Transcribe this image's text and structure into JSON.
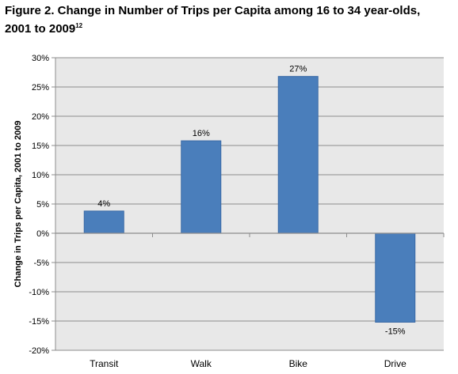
{
  "figure": {
    "title": "Figure 2. Change in Number of Trips per Capita among 16 to 34 year-olds, 2001 to 2009",
    "footnote": "12"
  },
  "chart_data": {
    "type": "bar",
    "categories": [
      "Transit",
      "Walk",
      "Bike",
      "Drive"
    ],
    "values": [
      3.8,
      15.8,
      26.8,
      -15.2
    ],
    "data_labels": [
      "4%",
      "16%",
      "27%",
      "-15%"
    ],
    "ylabel": "Change in Trips per Capita, 2001 to 2009",
    "xlabel": "",
    "ylim": [
      -20,
      30
    ],
    "yticks": [
      30,
      25,
      20,
      15,
      10,
      5,
      0,
      -5,
      -10,
      -15,
      -20
    ],
    "ytick_labels": [
      "30%",
      "25%",
      "20%",
      "15%",
      "10%",
      "5%",
      "0%",
      "-5%",
      "-10%",
      "-15%",
      "-20%"
    ],
    "grid": true,
    "legend": "none",
    "bar_color": "#4a7ebb",
    "bar_edge_color": "#3a6aa6",
    "plot_background": "#e8e8e8"
  }
}
